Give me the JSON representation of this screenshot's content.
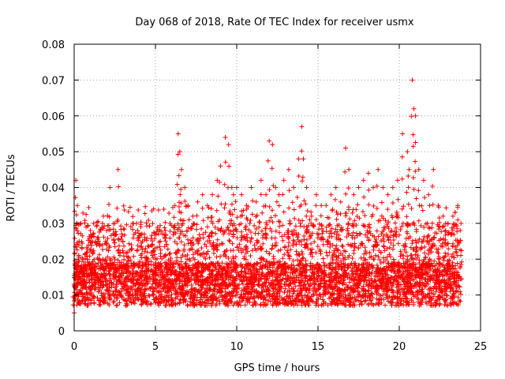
{
  "chart_data": {
    "type": "scatter",
    "title": "Day 068 of 2018, Rate Of TEC Index for receiver usmx",
    "xlabel": "GPS time / hours",
    "ylabel": "ROTI / TECUs",
    "xlim": [
      0,
      25
    ],
    "ylim": [
      0,
      0.08
    ],
    "x_ticks": [
      0,
      5,
      10,
      15,
      20,
      25
    ],
    "x_tick_labels": [
      "0",
      "5",
      "10",
      "15",
      "20",
      "25"
    ],
    "y_ticks": [
      0,
      0.01,
      0.02,
      0.03,
      0.04,
      0.05,
      0.06,
      0.07,
      0.08
    ],
    "y_tick_labels": [
      "0",
      "0.01",
      "0.02",
      "0.03",
      "0.04",
      "0.05",
      "0.06",
      "0.07",
      "0.08"
    ],
    "grid": true,
    "marker": "plus",
    "color": "#ff0000",
    "x_data_range": [
      0.0,
      23.8
    ],
    "series": [
      {
        "name": "ROTI",
        "description_values": "dense band ~0.005-0.02 with spikes",
        "x": [
          0.0,
          0.1,
          0.15,
          0.2,
          0.3,
          0.5,
          0.8,
          1.0,
          1.2,
          1.5,
          1.8,
          2.0,
          2.2,
          2.5,
          2.7,
          3.0,
          3.3,
          3.6,
          3.9,
          4.2,
          4.5,
          4.8,
          5.0,
          5.3,
          5.6,
          5.9,
          6.2,
          6.4,
          6.5,
          6.6,
          6.8,
          7.0,
          7.3,
          7.6,
          7.9,
          8.2,
          8.5,
          8.8,
          9.0,
          9.3,
          9.5,
          9.7,
          9.8,
          10.0,
          10.3,
          10.6,
          10.9,
          11.2,
          11.5,
          11.8,
          12.0,
          12.2,
          12.4,
          12.6,
          12.9,
          13.2,
          13.5,
          13.8,
          14.0,
          14.1,
          14.3,
          14.6,
          14.9,
          15.2,
          15.5,
          15.8,
          16.1,
          16.4,
          16.7,
          16.9,
          17.2,
          17.5,
          17.8,
          18.1,
          18.4,
          18.7,
          19.0,
          19.3,
          19.6,
          19.9,
          20.2,
          20.5,
          20.6,
          20.8,
          20.9,
          21.0,
          21.2,
          21.5,
          21.8,
          22.1,
          22.4,
          22.7,
          23.0,
          23.3,
          23.6,
          23.8
        ],
        "y": [
          0.005,
          0.042,
          0.03,
          0.035,
          0.025,
          0.02,
          0.022,
          0.028,
          0.03,
          0.025,
          0.032,
          0.028,
          0.04,
          0.03,
          0.045,
          0.025,
          0.022,
          0.03,
          0.028,
          0.025,
          0.022,
          0.024,
          0.02,
          0.025,
          0.028,
          0.03,
          0.035,
          0.055,
          0.05,
          0.045,
          0.04,
          0.035,
          0.032,
          0.036,
          0.038,
          0.035,
          0.038,
          0.042,
          0.046,
          0.054,
          0.052,
          0.04,
          0.038,
          0.04,
          0.038,
          0.035,
          0.04,
          0.036,
          0.042,
          0.038,
          0.053,
          0.052,
          0.04,
          0.038,
          0.042,
          0.045,
          0.04,
          0.048,
          0.057,
          0.048,
          0.04,
          0.032,
          0.038,
          0.035,
          0.035,
          0.038,
          0.04,
          0.036,
          0.051,
          0.045,
          0.038,
          0.04,
          0.042,
          0.044,
          0.04,
          0.045,
          0.04,
          0.038,
          0.04,
          0.042,
          0.055,
          0.05,
          0.045,
          0.07,
          0.062,
          0.06,
          0.045,
          0.042,
          0.038,
          0.045,
          0.035,
          0.032,
          0.03,
          0.032,
          0.035,
          0.03
        ]
      }
    ]
  }
}
